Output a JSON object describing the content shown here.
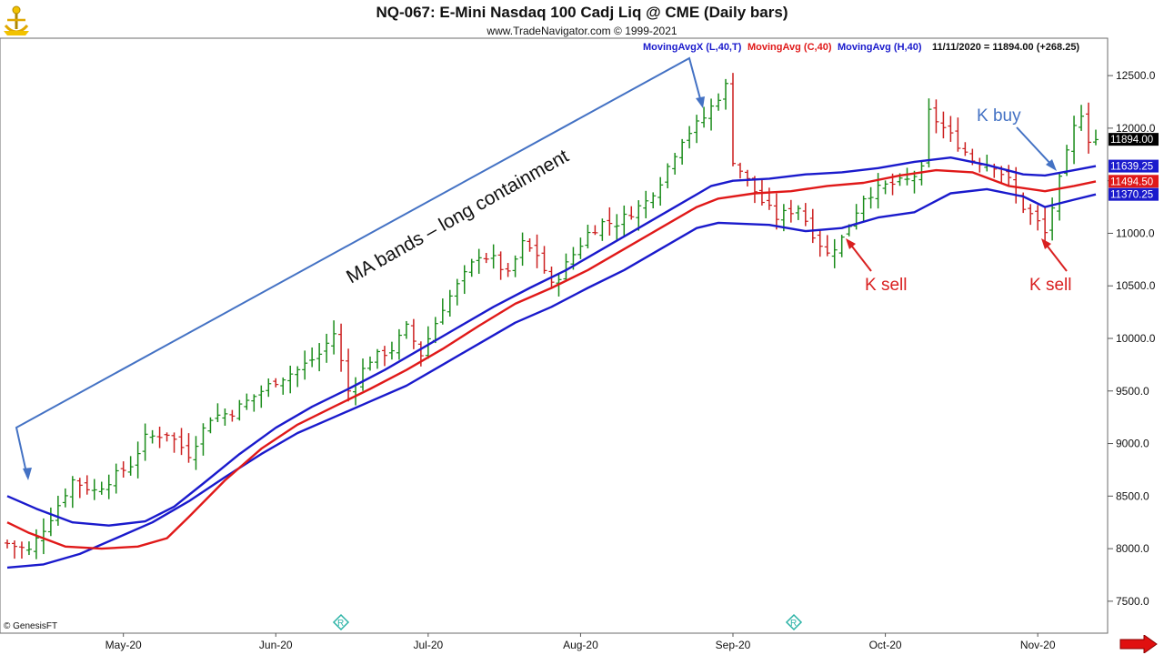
{
  "header": {
    "title": "NQ-067:  E-Mini Nasdaq 100 Cadj Liq @ CME  (Daily bars)",
    "subtitle": "www.TradeNavigator.com © 1999-2021"
  },
  "legend": {
    "items": [
      {
        "text": "MovingAvgX (L,40,T)",
        "color": "#1a1acc"
      },
      {
        "text": "MovingAvg (C,40)",
        "color": "#e01919"
      },
      {
        "text": "MovingAvg (H,40)",
        "color": "#1a1acc"
      },
      {
        "text": "11/11/2020 = 11894.00 (+268.25)",
        "color": "#111111"
      }
    ]
  },
  "copyright": "© GenesisFT",
  "price_tags": [
    {
      "value": "11894.00",
      "bg": "#000000",
      "fg": "#ffffff"
    },
    {
      "value": "11639.25",
      "bg": "#1a1acc",
      "fg": "#ffffff"
    },
    {
      "value": "11494.50",
      "bg": "#e01919",
      "fg": "#ffffff"
    },
    {
      "value": "11370.25",
      "bg": "#1a1acc",
      "fg": "#ffffff"
    }
  ],
  "annotations": {
    "ma_text": "MA bands – long containment",
    "k_buy": "K buy",
    "k_sell_1": "K sell",
    "k_sell_2": "K sell"
  },
  "chart_data": {
    "type": "ohlc",
    "y_ticks": [
      7500,
      8000,
      8500,
      9000,
      9500,
      10000,
      10500,
      11000,
      11500,
      12000,
      12500
    ],
    "y_tick_labels": [
      "7500.0",
      "8000.0",
      "8500.0",
      "9000.0",
      "9500.0",
      "10000.0",
      "10500.0",
      "11000.0",
      "11500.0",
      "12000.0",
      "12500.0"
    ],
    "ylim": [
      7300,
      12700
    ],
    "x_month_labels": [
      "May-20",
      "Jun-20",
      "Jul-20",
      "Aug-20",
      "Sep-20",
      "Oct-20",
      "Nov-20"
    ],
    "x_label_days": [
      16,
      37,
      58,
      79,
      100,
      121,
      142
    ],
    "day_count": 150,
    "up_color": "#1a8c1a",
    "down_color": "#cc1f1f",
    "close_anchors": [
      [
        0,
        8050
      ],
      [
        3,
        7980
      ],
      [
        6,
        8300
      ],
      [
        9,
        8650
      ],
      [
        12,
        8550
      ],
      [
        14,
        8650
      ],
      [
        17,
        8800
      ],
      [
        19,
        9050
      ],
      [
        22,
        9100
      ],
      [
        25,
        8900
      ],
      [
        28,
        9250
      ],
      [
        31,
        9300
      ],
      [
        34,
        9450
      ],
      [
        37,
        9600
      ],
      [
        40,
        9700
      ],
      [
        43,
        9850
      ],
      [
        45,
        10050
      ],
      [
        47,
        9500
      ],
      [
        50,
        9800
      ],
      [
        53,
        9900
      ],
      [
        55,
        10100
      ],
      [
        57,
        9850
      ],
      [
        60,
        10300
      ],
      [
        63,
        10600
      ],
      [
        65,
        10800
      ],
      [
        67,
        10750
      ],
      [
        69,
        10600
      ],
      [
        71,
        10900
      ],
      [
        73,
        10800
      ],
      [
        75,
        10500
      ],
      [
        78,
        10800
      ],
      [
        80,
        11000
      ],
      [
        82,
        11100
      ],
      [
        84,
        11100
      ],
      [
        86,
        11200
      ],
      [
        88,
        11300
      ],
      [
        90,
        11500
      ],
      [
        93,
        11900
      ],
      [
        96,
        12100
      ],
      [
        99,
        12400
      ],
      [
        100,
        11700
      ],
      [
        102,
        11500
      ],
      [
        104,
        11300
      ],
      [
        106,
        11150
      ],
      [
        109,
        11250
      ],
      [
        111,
        11000
      ],
      [
        113,
        10800
      ],
      [
        115,
        10950
      ],
      [
        118,
        11350
      ],
      [
        121,
        11450
      ],
      [
        124,
        11500
      ],
      [
        126,
        11600
      ],
      [
        127,
        12150
      ],
      [
        129,
        12000
      ],
      [
        131,
        11850
      ],
      [
        133,
        11700
      ],
      [
        136,
        11650
      ],
      [
        138,
        11500
      ],
      [
        139,
        11350
      ],
      [
        140,
        11250
      ],
      [
        142,
        11100
      ],
      [
        143,
        11000
      ],
      [
        145,
        11500
      ],
      [
        147,
        12000
      ],
      [
        148,
        12150
      ],
      [
        149,
        11900
      ],
      [
        150,
        11894
      ]
    ],
    "series": [
      {
        "name": "MovingAvgX (L,40,T)",
        "color": "#1a1acc",
        "values": [
          [
            0,
            7820
          ],
          [
            5,
            7850
          ],
          [
            10,
            7950
          ],
          [
            15,
            8100
          ],
          [
            20,
            8250
          ],
          [
            25,
            8450
          ],
          [
            30,
            8680
          ],
          [
            35,
            8900
          ],
          [
            40,
            9100
          ],
          [
            45,
            9250
          ],
          [
            50,
            9400
          ],
          [
            55,
            9550
          ],
          [
            60,
            9750
          ],
          [
            65,
            9950
          ],
          [
            70,
            10150
          ],
          [
            75,
            10300
          ],
          [
            80,
            10480
          ],
          [
            85,
            10650
          ],
          [
            90,
            10850
          ],
          [
            95,
            11050
          ],
          [
            98,
            11100
          ],
          [
            105,
            11080
          ],
          [
            110,
            11020
          ],
          [
            115,
            11050
          ],
          [
            120,
            11150
          ],
          [
            125,
            11200
          ],
          [
            130,
            11380
          ],
          [
            135,
            11420
          ],
          [
            140,
            11350
          ],
          [
            143,
            11250
          ],
          [
            147,
            11320
          ],
          [
            150,
            11370
          ]
        ]
      },
      {
        "name": "MovingAvg (C,40)",
        "color": "#e01919",
        "values": [
          [
            0,
            8250
          ],
          [
            3,
            8150
          ],
          [
            8,
            8020
          ],
          [
            13,
            8000
          ],
          [
            18,
            8020
          ],
          [
            22,
            8100
          ],
          [
            25,
            8300
          ],
          [
            30,
            8650
          ],
          [
            35,
            8950
          ],
          [
            40,
            9180
          ],
          [
            45,
            9350
          ],
          [
            50,
            9520
          ],
          [
            55,
            9700
          ],
          [
            60,
            9900
          ],
          [
            65,
            10120
          ],
          [
            70,
            10330
          ],
          [
            75,
            10480
          ],
          [
            80,
            10650
          ],
          [
            85,
            10850
          ],
          [
            90,
            11050
          ],
          [
            95,
            11250
          ],
          [
            98,
            11330
          ],
          [
            103,
            11380
          ],
          [
            108,
            11400
          ],
          [
            113,
            11450
          ],
          [
            118,
            11480
          ],
          [
            123,
            11550
          ],
          [
            128,
            11600
          ],
          [
            133,
            11580
          ],
          [
            138,
            11450
          ],
          [
            143,
            11400
          ],
          [
            147,
            11450
          ],
          [
            150,
            11494
          ]
        ]
      },
      {
        "name": "MovingAvg (H,40)",
        "color": "#1a1acc",
        "values": [
          [
            0,
            8500
          ],
          [
            4,
            8380
          ],
          [
            9,
            8250
          ],
          [
            14,
            8220
          ],
          [
            19,
            8260
          ],
          [
            23,
            8400
          ],
          [
            27,
            8620
          ],
          [
            32,
            8900
          ],
          [
            37,
            9150
          ],
          [
            42,
            9350
          ],
          [
            47,
            9520
          ],
          [
            52,
            9700
          ],
          [
            57,
            9900
          ],
          [
            62,
            10100
          ],
          [
            67,
            10300
          ],
          [
            72,
            10480
          ],
          [
            77,
            10650
          ],
          [
            82,
            10850
          ],
          [
            87,
            11050
          ],
          [
            92,
            11250
          ],
          [
            97,
            11450
          ],
          [
            100,
            11500
          ],
          [
            105,
            11520
          ],
          [
            110,
            11560
          ],
          [
            115,
            11580
          ],
          [
            120,
            11620
          ],
          [
            125,
            11680
          ],
          [
            130,
            11720
          ],
          [
            135,
            11650
          ],
          [
            140,
            11560
          ],
          [
            143,
            11550
          ],
          [
            147,
            11600
          ],
          [
            150,
            11639
          ]
        ]
      }
    ]
  }
}
